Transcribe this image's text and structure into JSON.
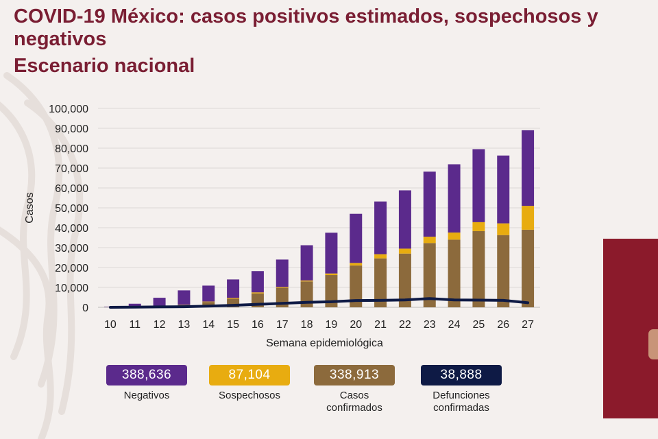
{
  "title": "COVID-19 México: casos positivos estimados, sospechosos y negativos",
  "subtitle": "Escenario nacional",
  "colors": {
    "title": "#7a1e33",
    "negativos": "#5b2a8c",
    "sospechosos": "#e8ac10",
    "confirmados": "#8c6a3c",
    "defunciones": "#0e1a45",
    "gridline": "#dcd8d6",
    "video_panel": "#8b1a2b"
  },
  "chart_data": {
    "type": "bar",
    "stacked": true,
    "xlabel": "Semana epidemiológica",
    "ylabel": "Casos",
    "ylim": [
      0,
      100000
    ],
    "yticks": [
      "0",
      "10,000",
      "20,000",
      "30,000",
      "40,000",
      "50,000",
      "60,000",
      "70,000",
      "80,000",
      "90,000",
      "100,000"
    ],
    "grid": true,
    "categories": [
      "10",
      "11",
      "12",
      "13",
      "14",
      "15",
      "16",
      "17",
      "18",
      "19",
      "20",
      "21",
      "22",
      "23",
      "24",
      "25",
      "26",
      "27"
    ],
    "series": [
      {
        "name": "Casos confirmados",
        "values": [
          100,
          300,
          600,
          1200,
          2700,
          4300,
          7000,
          9800,
          13000,
          16200,
          21000,
          24600,
          27000,
          32300,
          34000,
          38300,
          36300,
          39000
        ]
      },
      {
        "name": "Sospechosos",
        "values": [
          0,
          0,
          0,
          100,
          200,
          400,
          500,
          400,
          500,
          800,
          1300,
          2100,
          2500,
          3200,
          3600,
          4500,
          5900,
          12000
        ]
      },
      {
        "name": "Negativos",
        "values": [
          200,
          1500,
          4200,
          7200,
          8000,
          9300,
          10700,
          13800,
          17700,
          20500,
          24700,
          26500,
          29300,
          32700,
          34300,
          36700,
          34100,
          38000
        ]
      }
    ],
    "line": {
      "name": "Defunciones confirmadas",
      "values": [
        0,
        100,
        200,
        300,
        600,
        1000,
        1500,
        2000,
        2500,
        2800,
        3400,
        3500,
        3700,
        4400,
        3700,
        3600,
        3500,
        2300
      ]
    }
  },
  "stats": [
    {
      "value": "388,636",
      "label": "Negativos",
      "color": "#5b2a8c"
    },
    {
      "value": "87,104",
      "label": "Sospechosos",
      "color": "#e8ac10"
    },
    {
      "value": "338,913",
      "label": "Casos\nconfirmados",
      "color": "#8c6a3c"
    },
    {
      "value": "38,888",
      "label": "Defunciones\nconfirmadas",
      "color": "#0e1a45"
    }
  ]
}
